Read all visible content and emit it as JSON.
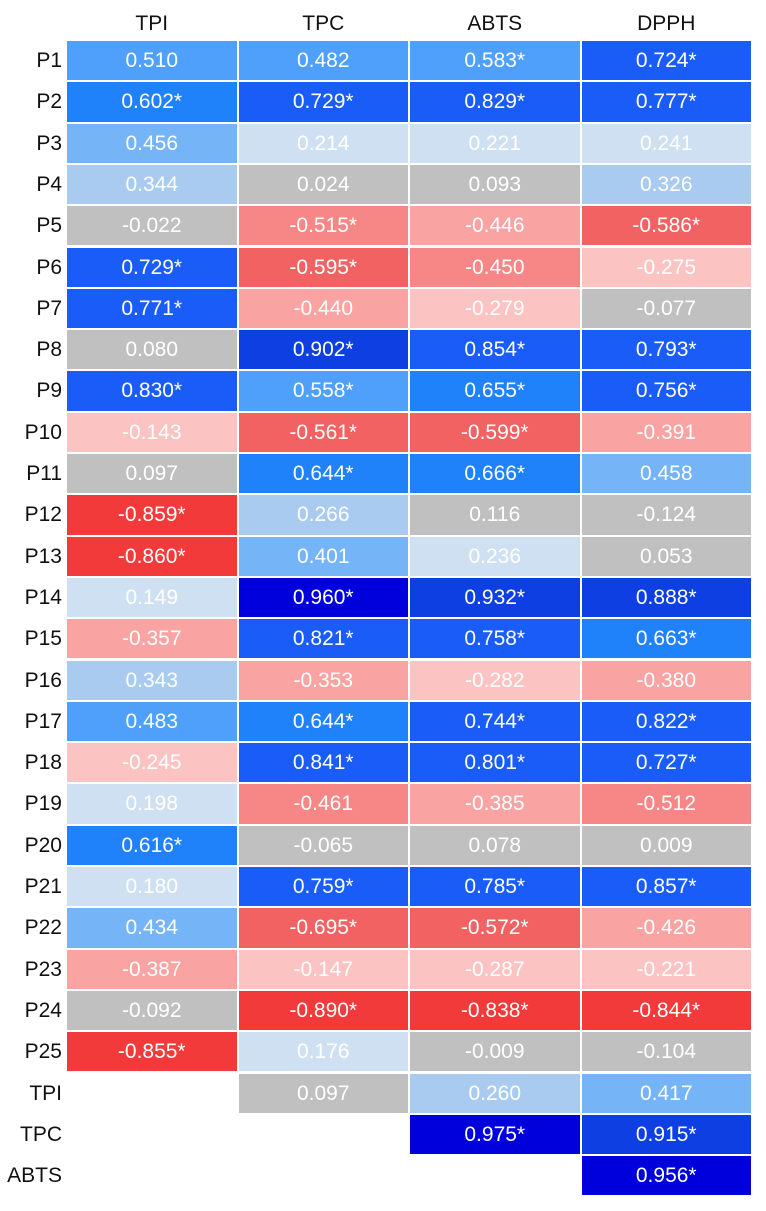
{
  "chart_data": {
    "type": "heatmap",
    "columns": [
      "TPI",
      "TPC",
      "ABTS",
      "DPPH"
    ],
    "rows": [
      "P1",
      "P2",
      "P3",
      "P4",
      "P5",
      "P6",
      "P7",
      "P8",
      "P9",
      "P10",
      "P11",
      "P12",
      "P13",
      "P14",
      "P15",
      "P16",
      "P17",
      "P18",
      "P19",
      "P20",
      "P21",
      "P22",
      "P23",
      "P24",
      "P25",
      "TPI",
      "TPC",
      "ABTS"
    ],
    "cells": [
      [
        "0.510",
        "0.482",
        "0.583*",
        "0.724*"
      ],
      [
        "0.602*",
        "0.729*",
        "0.829*",
        "0.777*"
      ],
      [
        "0.456",
        "0.214",
        "0.221",
        "0.241"
      ],
      [
        "0.344",
        "0.024",
        "0.093",
        "0.326"
      ],
      [
        "-0.022",
        "-0.515*",
        "-0.446",
        "-0.586*"
      ],
      [
        "0.729*",
        "-0.595*",
        "-0.450",
        "-0.275"
      ],
      [
        "0.771*",
        "-0.440",
        "-0.279",
        "-0.077"
      ],
      [
        "0.080",
        "0.902*",
        "0.854*",
        "0.793*"
      ],
      [
        "0.830*",
        "0.558*",
        "0.655*",
        "0.756*"
      ],
      [
        "-0.143",
        "-0.561*",
        "-0.599*",
        "-0.391"
      ],
      [
        "0.097",
        "0.644*",
        "0.666*",
        "0.458"
      ],
      [
        "-0.859*",
        "0.266",
        "0.116",
        "-0.124"
      ],
      [
        "-0.860*",
        "0.401",
        "0.236",
        "0.053"
      ],
      [
        "0.149",
        "0.960*",
        "0.932*",
        "0.888*"
      ],
      [
        "-0.357",
        "0.821*",
        "0.758*",
        "0.663*"
      ],
      [
        "0.343",
        "-0.353",
        "-0.282",
        "-0.380"
      ],
      [
        "0.483",
        "0.644*",
        "0.744*",
        "0.822*"
      ],
      [
        "-0.245",
        "0.841*",
        "0.801*",
        "0.727*"
      ],
      [
        "0.198",
        "-0.461",
        "-0.385",
        "-0.512"
      ],
      [
        "0.616*",
        "-0.065",
        "0.078",
        "0.009"
      ],
      [
        "0.180",
        "0.759*",
        "0.785*",
        "0.857*"
      ],
      [
        "0.434",
        "-0.695*",
        "-0.572*",
        "-0.426"
      ],
      [
        "-0.387",
        "-0.147",
        "-0.287",
        "-0.221"
      ],
      [
        "-0.092",
        "-0.890*",
        "-0.838*",
        "-0.844*"
      ],
      [
        "-0.855*",
        "0.176",
        "-0.009",
        "-0.104"
      ],
      [
        null,
        "0.097",
        "0.260",
        "0.417"
      ],
      [
        null,
        null,
        "0.975*",
        "0.915*"
      ],
      [
        null,
        null,
        null,
        "0.956*"
      ]
    ],
    "neutral_color": "#c0c0c0",
    "positive_colors": [
      "#cfe0f2",
      "#a9cbf0",
      "#74b4f7",
      "#4ea0fb",
      "#1f82fb",
      "#1a5cf8",
      "#0e3fe2",
      "#0000dd"
    ],
    "negative_colors": [
      "#fcc3c3",
      "#f9a3a3",
      "#f78686",
      "#f36262",
      "#f23a3a"
    ]
  }
}
